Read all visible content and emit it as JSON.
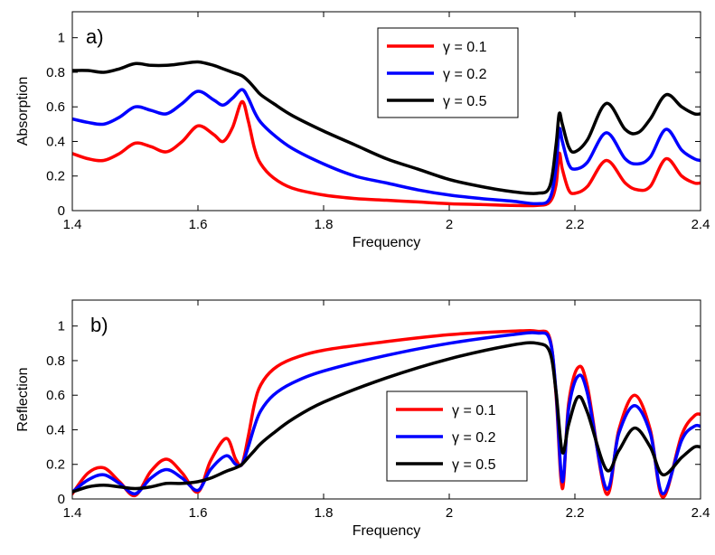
{
  "chart_data": [
    {
      "type": "line",
      "panel_label": "a)",
      "xlabel": "Frequency",
      "ylabel": "Absorption",
      "xlim": [
        1.4,
        2.4
      ],
      "ylim": [
        0,
        1.15
      ],
      "xticks": [
        1.4,
        1.6,
        1.8,
        2,
        2.2,
        2.4
      ],
      "xtick_labels": [
        "1.4",
        "1.6",
        "1.8",
        "2",
        "2.2",
        "2.4"
      ],
      "yticks": [
        0,
        0.2,
        0.4,
        0.6,
        0.8,
        1
      ],
      "ytick_labels": [
        "0",
        "0.2",
        "0.4",
        "0.6",
        "0.8",
        "1"
      ],
      "grid": false,
      "legend_position": "top-right",
      "series": [
        {
          "name": "γ = 0.1",
          "color": "#ff0000",
          "x": [
            1.4,
            1.425,
            1.45,
            1.475,
            1.5,
            1.525,
            1.55,
            1.575,
            1.6,
            1.625,
            1.64,
            1.655,
            1.67,
            1.68,
            1.69,
            1.7,
            1.72,
            1.75,
            1.8,
            1.85,
            1.9,
            1.95,
            2.0,
            2.05,
            2.1,
            2.14,
            2.16,
            2.17,
            2.175,
            2.18,
            2.19,
            2.2,
            2.22,
            2.25,
            2.28,
            2.3,
            2.32,
            2.345,
            2.37,
            2.39,
            2.4
          ],
          "y": [
            0.33,
            0.3,
            0.29,
            0.33,
            0.39,
            0.37,
            0.34,
            0.4,
            0.49,
            0.44,
            0.4,
            0.48,
            0.63,
            0.52,
            0.36,
            0.27,
            0.19,
            0.13,
            0.09,
            0.07,
            0.06,
            0.05,
            0.04,
            0.035,
            0.03,
            0.03,
            0.05,
            0.15,
            0.33,
            0.24,
            0.12,
            0.1,
            0.14,
            0.29,
            0.16,
            0.12,
            0.14,
            0.3,
            0.2,
            0.16,
            0.16
          ]
        },
        {
          "name": "γ = 0.2",
          "color": "#0000ff",
          "x": [
            1.4,
            1.425,
            1.45,
            1.475,
            1.5,
            1.525,
            1.55,
            1.575,
            1.6,
            1.625,
            1.64,
            1.655,
            1.67,
            1.68,
            1.69,
            1.7,
            1.72,
            1.75,
            1.8,
            1.85,
            1.9,
            1.95,
            2.0,
            2.05,
            2.1,
            2.14,
            2.16,
            2.17,
            2.175,
            2.18,
            2.19,
            2.2,
            2.22,
            2.25,
            2.28,
            2.3,
            2.32,
            2.345,
            2.37,
            2.39,
            2.4
          ],
          "y": [
            0.53,
            0.51,
            0.5,
            0.54,
            0.6,
            0.58,
            0.56,
            0.62,
            0.69,
            0.64,
            0.61,
            0.65,
            0.7,
            0.65,
            0.57,
            0.51,
            0.44,
            0.36,
            0.27,
            0.2,
            0.16,
            0.12,
            0.09,
            0.07,
            0.055,
            0.04,
            0.07,
            0.25,
            0.47,
            0.4,
            0.27,
            0.24,
            0.28,
            0.45,
            0.3,
            0.27,
            0.31,
            0.47,
            0.35,
            0.3,
            0.29
          ]
        },
        {
          "name": "γ = 0.5",
          "color": "#000000",
          "x": [
            1.4,
            1.425,
            1.45,
            1.475,
            1.5,
            1.525,
            1.55,
            1.575,
            1.6,
            1.625,
            1.64,
            1.655,
            1.67,
            1.68,
            1.69,
            1.7,
            1.72,
            1.75,
            1.8,
            1.85,
            1.9,
            1.95,
            2.0,
            2.05,
            2.1,
            2.14,
            2.16,
            2.17,
            2.175,
            2.18,
            2.19,
            2.2,
            2.22,
            2.25,
            2.28,
            2.3,
            2.32,
            2.345,
            2.37,
            2.39,
            2.4
          ],
          "y": [
            0.81,
            0.81,
            0.8,
            0.82,
            0.85,
            0.84,
            0.84,
            0.85,
            0.86,
            0.84,
            0.82,
            0.8,
            0.78,
            0.75,
            0.71,
            0.67,
            0.62,
            0.55,
            0.46,
            0.38,
            0.3,
            0.24,
            0.18,
            0.14,
            0.11,
            0.1,
            0.14,
            0.38,
            0.56,
            0.5,
            0.37,
            0.34,
            0.41,
            0.62,
            0.47,
            0.45,
            0.53,
            0.67,
            0.6,
            0.56,
            0.56
          ]
        }
      ]
    },
    {
      "type": "line",
      "panel_label": "b)",
      "xlabel": "Frequency",
      "ylabel": "Reflection",
      "xlim": [
        1.4,
        2.4
      ],
      "ylim": [
        0,
        1.15
      ],
      "xticks": [
        1.4,
        1.6,
        1.8,
        2,
        2.2,
        2.4
      ],
      "xtick_labels": [
        "1.4",
        "1.6",
        "1.8",
        "2",
        "2.2",
        "2.4"
      ],
      "yticks": [
        0,
        0.2,
        0.4,
        0.6,
        0.8,
        1
      ],
      "ytick_labels": [
        "0",
        "0.2",
        "0.4",
        "0.6",
        "0.8",
        "1"
      ],
      "grid": false,
      "legend_position": "bottom-right",
      "series": [
        {
          "name": "γ = 0.1",
          "color": "#ff0000",
          "x": [
            1.4,
            1.425,
            1.45,
            1.475,
            1.5,
            1.525,
            1.55,
            1.575,
            1.6,
            1.62,
            1.645,
            1.66,
            1.67,
            1.68,
            1.69,
            1.7,
            1.72,
            1.75,
            1.8,
            1.9,
            2.0,
            2.1,
            2.14,
            2.16,
            2.17,
            2.18,
            2.19,
            2.205,
            2.22,
            2.25,
            2.27,
            2.295,
            2.32,
            2.34,
            2.37,
            2.39,
            2.4
          ],
          "y": [
            0.03,
            0.15,
            0.18,
            0.1,
            0.02,
            0.16,
            0.23,
            0.15,
            0.04,
            0.22,
            0.35,
            0.23,
            0.2,
            0.36,
            0.55,
            0.66,
            0.75,
            0.81,
            0.86,
            0.91,
            0.95,
            0.97,
            0.97,
            0.93,
            0.6,
            0.06,
            0.55,
            0.76,
            0.65,
            0.03,
            0.4,
            0.6,
            0.4,
            0.01,
            0.37,
            0.48,
            0.49
          ]
        },
        {
          "name": "γ = 0.2",
          "color": "#0000ff",
          "x": [
            1.4,
            1.425,
            1.45,
            1.475,
            1.5,
            1.525,
            1.55,
            1.575,
            1.6,
            1.62,
            1.645,
            1.66,
            1.67,
            1.68,
            1.69,
            1.7,
            1.72,
            1.75,
            1.8,
            1.9,
            2.0,
            2.1,
            2.14,
            2.16,
            2.17,
            2.18,
            2.19,
            2.205,
            2.22,
            2.25,
            2.27,
            2.295,
            2.32,
            2.34,
            2.37,
            2.39,
            2.4
          ],
          "y": [
            0.04,
            0.11,
            0.14,
            0.09,
            0.03,
            0.12,
            0.17,
            0.12,
            0.05,
            0.17,
            0.25,
            0.2,
            0.2,
            0.3,
            0.42,
            0.51,
            0.6,
            0.67,
            0.74,
            0.83,
            0.9,
            0.95,
            0.96,
            0.92,
            0.62,
            0.1,
            0.52,
            0.71,
            0.61,
            0.06,
            0.38,
            0.54,
            0.38,
            0.03,
            0.34,
            0.42,
            0.42
          ]
        },
        {
          "name": "γ = 0.5",
          "color": "#000000",
          "x": [
            1.4,
            1.425,
            1.45,
            1.475,
            1.5,
            1.525,
            1.55,
            1.575,
            1.6,
            1.62,
            1.645,
            1.66,
            1.67,
            1.68,
            1.69,
            1.7,
            1.72,
            1.75,
            1.8,
            1.9,
            2.0,
            2.1,
            2.14,
            2.16,
            2.17,
            2.18,
            2.19,
            2.205,
            2.22,
            2.25,
            2.27,
            2.295,
            2.32,
            2.34,
            2.37,
            2.39,
            2.4
          ],
          "y": [
            0.04,
            0.07,
            0.08,
            0.07,
            0.06,
            0.07,
            0.09,
            0.09,
            0.1,
            0.12,
            0.16,
            0.18,
            0.2,
            0.24,
            0.28,
            0.32,
            0.38,
            0.46,
            0.56,
            0.7,
            0.81,
            0.89,
            0.9,
            0.85,
            0.62,
            0.27,
            0.43,
            0.59,
            0.5,
            0.17,
            0.28,
            0.41,
            0.3,
            0.14,
            0.24,
            0.3,
            0.3
          ]
        }
      ]
    }
  ]
}
